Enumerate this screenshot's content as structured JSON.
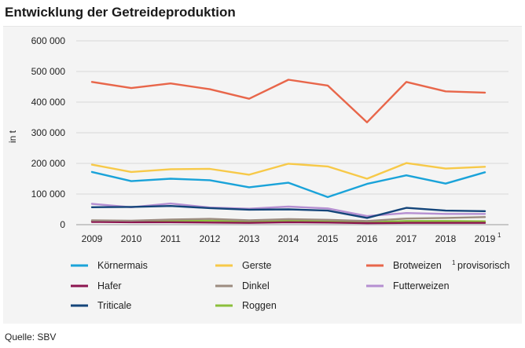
{
  "header": {
    "title": "Entwicklung der Getreideproduktion"
  },
  "footer": {
    "source": "Quelle: SBV"
  },
  "chart_data": {
    "type": "line",
    "title": "Entwicklung der Getreideproduktion",
    "xlabel": "",
    "ylabel": "in t",
    "ylim": [
      0,
      600000
    ],
    "yticks": [
      0,
      100000,
      200000,
      300000,
      400000,
      500000,
      600000
    ],
    "ytick_labels": [
      "0",
      "100 000",
      "200 000",
      "300 000",
      "400 000",
      "500 000",
      "600 000"
    ],
    "x": [
      "2009",
      "2010",
      "2011",
      "2012",
      "2013",
      "2014",
      "2015",
      "2016",
      "2017",
      "2018",
      "2019"
    ],
    "x_last_superscript": "1",
    "footnote": {
      "mark": "1",
      "text": "provisorisch"
    },
    "legend_position": "bottom",
    "series": [
      {
        "name": "Körnermais",
        "color": "#1aa3d9",
        "values": [
          172000,
          142000,
          150000,
          145000,
          122000,
          137000,
          90000,
          133000,
          161000,
          134000,
          171000
        ]
      },
      {
        "name": "Gerste",
        "color": "#f7c948",
        "values": [
          196000,
          172000,
          181000,
          182000,
          163000,
          199000,
          190000,
          150000,
          201000,
          183000,
          189000
        ]
      },
      {
        "name": "Brotweizen",
        "color": "#e8664a",
        "values": [
          466000,
          446000,
          461000,
          442000,
          411000,
          473000,
          454000,
          334000,
          466000,
          435000,
          431000
        ]
      },
      {
        "name": "Hafer",
        "color": "#8c1550",
        "values": [
          9000,
          8000,
          8000,
          7000,
          6000,
          8000,
          7000,
          5000,
          6000,
          6000,
          6000
        ]
      },
      {
        "name": "Dinkel",
        "color": "#9c8c80",
        "values": [
          14000,
          13000,
          17000,
          19000,
          14000,
          18000,
          16000,
          12000,
          20000,
          22000,
          25000
        ]
      },
      {
        "name": "Futterweizen",
        "color": "#b58fd1",
        "values": [
          68000,
          57000,
          69000,
          56000,
          52000,
          59000,
          53000,
          28000,
          38000,
          35000,
          35000
        ]
      },
      {
        "name": "Triticale",
        "color": "#14457a",
        "values": [
          57000,
          58000,
          61000,
          54000,
          49000,
          50000,
          46000,
          22000,
          55000,
          46000,
          44000
        ]
      },
      {
        "name": "Roggen",
        "color": "#8bbf3b",
        "values": [
          12000,
          11000,
          12000,
          13000,
          10000,
          13000,
          11000,
          8000,
          12000,
          12000,
          11000
        ]
      }
    ]
  }
}
